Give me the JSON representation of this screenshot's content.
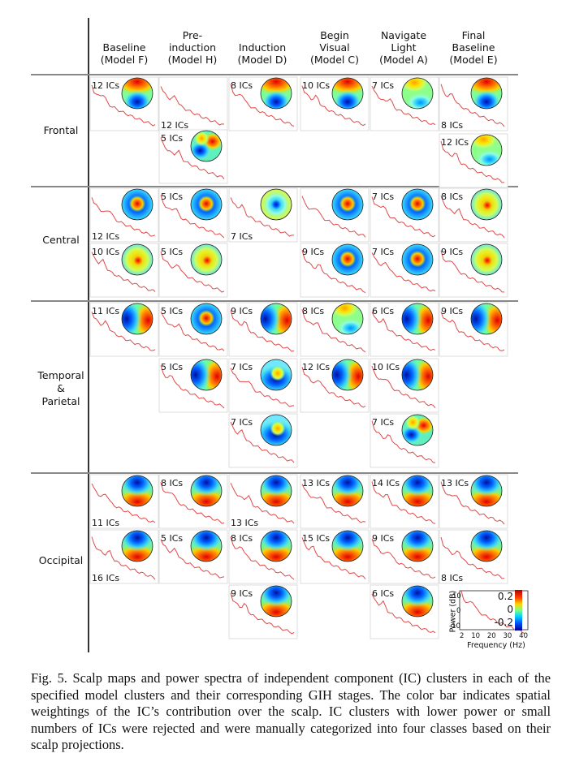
{
  "figure": {
    "column_headers": [
      "Baseline\n(Model F)",
      "Pre-\ninduction\n(Model H)",
      "Induction\n(Model D)",
      "Begin\nVisual\n(Model C)",
      "Navigate\nLight\n(Model A)",
      "Final\nBaseline\n(Model E)"
    ],
    "row_labels": [
      "Frontal",
      "Central",
      "Temporal\n&\nParietal",
      "Occipital"
    ],
    "cells": [
      {
        "c": 0,
        "y": 95,
        "label": "12 ICs",
        "lp": "tl",
        "m": "frontal"
      },
      {
        "c": 1,
        "y": 95,
        "label": "12 ICs",
        "lp": "bl",
        "m": "none"
      },
      {
        "c": 1,
        "y": 160,
        "label": "5 ICs",
        "lp": "tl",
        "m": "patchy"
      },
      {
        "c": 2,
        "y": 95,
        "label": "8 ICs",
        "lp": "tl",
        "m": "frontal"
      },
      {
        "c": 3,
        "y": 95,
        "label": "10 ICs",
        "lp": "tl",
        "m": "frontal"
      },
      {
        "c": 4,
        "y": 95,
        "label": "7 ICs",
        "lp": "tl",
        "m": "greenfront"
      },
      {
        "c": 5,
        "y": 95,
        "label": "8 ICs",
        "lp": "bl",
        "m": "frontal"
      },
      {
        "c": 5,
        "y": 165,
        "label": "12 ICs",
        "lp": "tl",
        "m": "greenfront"
      },
      {
        "c": 0,
        "y": 232,
        "label": "12 ICs",
        "lp": "bl",
        "m": "central"
      },
      {
        "c": 0,
        "y": 300,
        "label": "10 ICs",
        "lp": "tl",
        "m": "centralsoft"
      },
      {
        "c": 1,
        "y": 232,
        "label": "5 ICs",
        "lp": "tl",
        "m": "central"
      },
      {
        "c": 1,
        "y": 300,
        "label": "5 ICs",
        "lp": "tl",
        "m": "centralsoft"
      },
      {
        "c": 2,
        "y": 232,
        "label": "7 ICs",
        "lp": "bl",
        "m": "ring"
      },
      {
        "c": 3,
        "y": 232,
        "label": "",
        "lp": "tl",
        "m": "central"
      },
      {
        "c": 3,
        "y": 300,
        "label": "9 ICs",
        "lp": "tl",
        "m": "central"
      },
      {
        "c": 4,
        "y": 232,
        "label": "7 ICs",
        "lp": "tl",
        "m": "central"
      },
      {
        "c": 4,
        "y": 300,
        "label": "7 ICs",
        "lp": "tl",
        "m": "central"
      },
      {
        "c": 5,
        "y": 232,
        "label": "8 ICs",
        "lp": "tl",
        "m": "centralsoft"
      },
      {
        "c": 5,
        "y": 300,
        "label": "9 ICs",
        "lp": "tl",
        "m": "centralsoft"
      },
      {
        "c": 0,
        "y": 373,
        "label": "11 ICs",
        "lp": "tl",
        "m": "lateral"
      },
      {
        "c": 1,
        "y": 373,
        "label": "5 ICs",
        "lp": "tl",
        "m": "central"
      },
      {
        "c": 1,
        "y": 442,
        "label": "5 ICs",
        "lp": "tl",
        "m": "lateral"
      },
      {
        "c": 2,
        "y": 373,
        "label": "9 ICs",
        "lp": "tl",
        "m": "lateral"
      },
      {
        "c": 2,
        "y": 442,
        "label": "7 ICs",
        "lp": "tl",
        "m": "parietal"
      },
      {
        "c": 2,
        "y": 510,
        "label": "7 ICs",
        "lp": "tl",
        "m": "parietal"
      },
      {
        "c": 3,
        "y": 373,
        "label": "8 ICs",
        "lp": "tl",
        "m": "greenfront"
      },
      {
        "c": 3,
        "y": 442,
        "label": "12 ICs",
        "lp": "tl",
        "m": "lateral"
      },
      {
        "c": 4,
        "y": 373,
        "label": "6 ICs",
        "lp": "tl",
        "m": "lateral"
      },
      {
        "c": 4,
        "y": 442,
        "label": "10 ICs",
        "lp": "tl",
        "m": "lateral"
      },
      {
        "c": 4,
        "y": 510,
        "label": "7 ICs",
        "lp": "tl",
        "m": "patchy"
      },
      {
        "c": 5,
        "y": 373,
        "label": "9 ICs",
        "lp": "tl",
        "m": "lateral"
      },
      {
        "c": 0,
        "y": 585,
        "label": "11 ICs",
        "lp": "bl",
        "m": "occipital"
      },
      {
        "c": 0,
        "y": 653,
        "label": "16 ICs",
        "lp": "bl",
        "m": "occipital"
      },
      {
        "c": 1,
        "y": 585,
        "label": "8 ICs",
        "lp": "tl",
        "m": "occipital"
      },
      {
        "c": 1,
        "y": 653,
        "label": "5 ICs",
        "lp": "tl",
        "m": "occipital"
      },
      {
        "c": 2,
        "y": 585,
        "label": "13 ICs",
        "lp": "bl",
        "m": "occipital"
      },
      {
        "c": 2,
        "y": 653,
        "label": "8 ICs",
        "lp": "tl",
        "m": "occipital"
      },
      {
        "c": 2,
        "y": 721,
        "label": "9 ICs",
        "lp": "tl",
        "m": "occipital"
      },
      {
        "c": 3,
        "y": 585,
        "label": "13 ICs",
        "lp": "tl",
        "m": "occipital"
      },
      {
        "c": 3,
        "y": 653,
        "label": "15 ICs",
        "lp": "tl",
        "m": "occipital"
      },
      {
        "c": 4,
        "y": 585,
        "label": "14 ICs",
        "lp": "tl",
        "m": "occipital"
      },
      {
        "c": 4,
        "y": 653,
        "label": "9 ICs",
        "lp": "tl",
        "m": "occipital"
      },
      {
        "c": 4,
        "y": 721,
        "label": "6 ICs",
        "lp": "tl",
        "m": "occipital"
      },
      {
        "c": 5,
        "y": 585,
        "label": "13 ICs",
        "lp": "tl",
        "m": "occipital"
      },
      {
        "c": 5,
        "y": 653,
        "label": "8 ICs",
        "lp": "bl",
        "m": "occipital"
      }
    ],
    "legend": {
      "ylabel": "Power (dB)",
      "xlabel": "Frequency (Hz)",
      "yticks": [
        "10",
        "0",
        "-10"
      ],
      "xticks": [
        "2",
        "10",
        "20",
        "30",
        "40"
      ],
      "colorbar_ticks": [
        "0.2",
        "0",
        "-0.2"
      ]
    }
  },
  "caption": "Fig. 5.  Scalp maps and power spectra of independent component (IC) clusters in each of the specified model clusters and their corresponding GIH stages. The color bar indicates spatial weightings of the IC’s contribution over the scalp. IC clusters with lower power or small numbers of ICs were rejected and were manually categorized into four classes based on their scalp projections."
}
